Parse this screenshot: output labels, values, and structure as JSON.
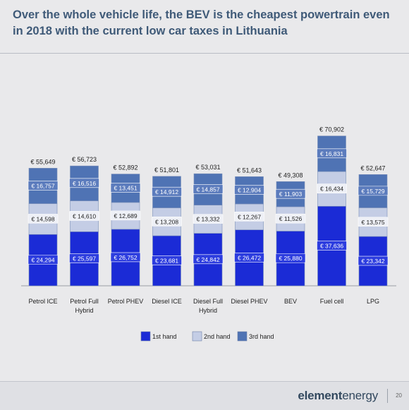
{
  "slide": {
    "title": "Over the whole vehicle life, the BEV is the cheapest powertrain even in 2018 with the current low car taxes in Lithuania",
    "page_number": "20",
    "brand": {
      "bold": "element",
      "light": "energy"
    }
  },
  "chart_data": {
    "type": "bar",
    "stacked": true,
    "categories": [
      "Petrol ICE",
      "Petrol Full Hybrid",
      "Petrol PHEV",
      "Diesel ICE",
      "Diesel Full Hybrid",
      "Diesel PHEV",
      "BEV",
      "Fuel cell",
      "LPG"
    ],
    "category_lines": [
      [
        "Petrol ICE"
      ],
      [
        "Petrol Full",
        "Hybrid"
      ],
      [
        "Petrol PHEV"
      ],
      [
        "Diesel ICE"
      ],
      [
        "Diesel Full",
        "Hybrid"
      ],
      [
        "Diesel PHEV"
      ],
      [
        "BEV"
      ],
      [
        "Fuel cell"
      ],
      [
        "LPG"
      ]
    ],
    "series": [
      {
        "name": "1st hand",
        "color": "#1b2bd6",
        "values": [
          24294,
          25597,
          26752,
          23681,
          24842,
          26472,
          25880,
          37636,
          23342
        ],
        "labels": [
          "€ 24,294",
          "€ 25,597",
          "€ 26,752",
          "€ 23,681",
          "€ 24,842",
          "€ 26,472",
          "€ 25,880",
          "€ 37,636",
          "€ 23,342"
        ]
      },
      {
        "name": "2nd hand",
        "color": "#c4cde5",
        "values": [
          14598,
          14610,
          12689,
          13208,
          13332,
          12267,
          11526,
          16434,
          13575
        ],
        "labels": [
          "€ 14,598",
          "€ 14,610",
          "€ 12,689",
          "€ 13,208",
          "€ 13,332",
          "€ 12,267",
          "€ 11,526",
          "€ 16,434",
          "€ 13,575"
        ]
      },
      {
        "name": "3rd hand",
        "color": "#4f73b4",
        "values": [
          16757,
          16516,
          13451,
          14912,
          14857,
          12904,
          11903,
          16831,
          15729
        ],
        "labels": [
          "€ 16,757",
          "€ 16,516",
          "€ 13,451",
          "€ 14,912",
          "€ 14,857",
          "€ 12,904",
          "€ 11,903",
          "€ 16,831",
          "€ 15,729"
        ]
      }
    ],
    "totals": [
      55649,
      56723,
      52892,
      51801,
      53031,
      51643,
      49308,
      70902,
      52647
    ],
    "total_labels": [
      "€ 55,649",
      "€ 56,723",
      "€ 52,892",
      "€ 51,801",
      "€ 53,031",
      "€ 51,643",
      "€ 49,308",
      "€ 70,902",
      "€ 52,647"
    ],
    "ylim": [
      0,
      75000
    ],
    "grid": false,
    "legend_position": "bottom",
    "xlabel": "",
    "ylabel": ""
  }
}
